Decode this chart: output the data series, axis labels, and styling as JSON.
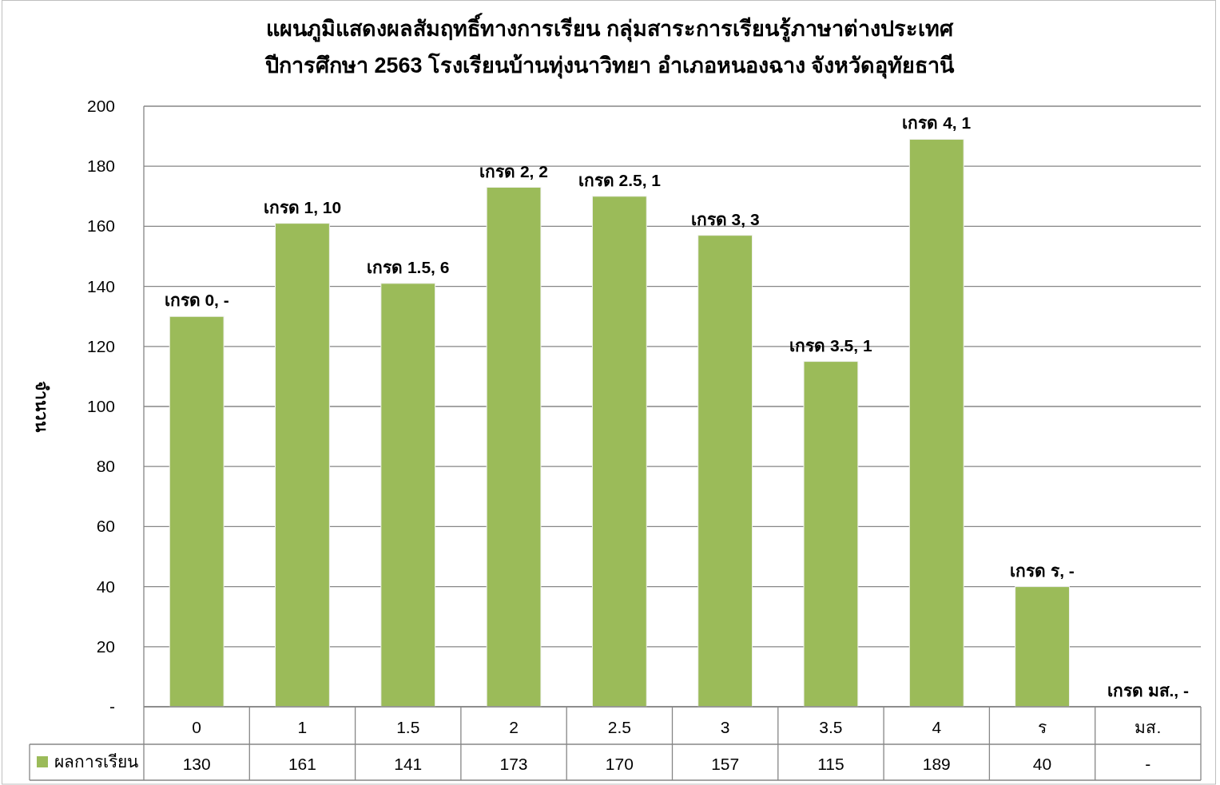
{
  "chart_data": {
    "type": "bar",
    "title": "แผนภูมิแสดงผลสัมฤทธิ์ทางการเรียน กลุ่มสาระการเรียนรู้ภาษาต่างประเทศ",
    "subtitle": "ปีการศึกษา 2563 โรงเรียนบ้านทุ่งนาวิทยา อำเภอหนองฉาง จังหวัดอุทัยธานี",
    "ylabel": "จำนวน",
    "categories": [
      "0",
      "1",
      "1.5",
      "2",
      "2.5",
      "3",
      "3.5",
      "4",
      "ร",
      "มส."
    ],
    "series": [
      {
        "name": "ผลการเรียน",
        "color": "#9bbb59",
        "values": [
          130,
          161,
          141,
          173,
          170,
          157,
          115,
          189,
          40,
          0
        ],
        "value_labels": [
          "130",
          "161",
          "141",
          "173",
          "170",
          "157",
          "115",
          "189",
          "40",
          "-"
        ]
      }
    ],
    "ylim": [
      0,
      200
    ],
    "yticks": [
      {
        "value": 0,
        "label": "-"
      },
      20,
      40,
      60,
      80,
      100,
      120,
      140,
      160,
      180,
      200
    ],
    "grid": "y",
    "legend": "bottom left",
    "annotations": [
      {
        "text": "เกรด 0, -",
        "x": "0",
        "y": 130
      },
      {
        "text": "เกรด 1, 10",
        "x": "1",
        "y": 161
      },
      {
        "text": "เกรด 1.5, 6",
        "x": "1.5",
        "y": 141
      },
      {
        "text": "เกรด 2, 2",
        "x": "2",
        "y": 173
      },
      {
        "text": "เกรด 2.5, 1",
        "x": "2.5",
        "y": 170
      },
      {
        "text": "เกรด 3, 3",
        "x": "3",
        "y": 157
      },
      {
        "text": "เกรด 3.5, 1",
        "x": "3.5",
        "y": 115
      },
      {
        "text": "เกรด 4, 1",
        "x": "4",
        "y": 189
      },
      {
        "text": "เกรด ร, -",
        "x": "ร",
        "y": 40
      },
      {
        "text": "เกรด มส., -",
        "x": "มส.",
        "y": 0
      }
    ]
  }
}
